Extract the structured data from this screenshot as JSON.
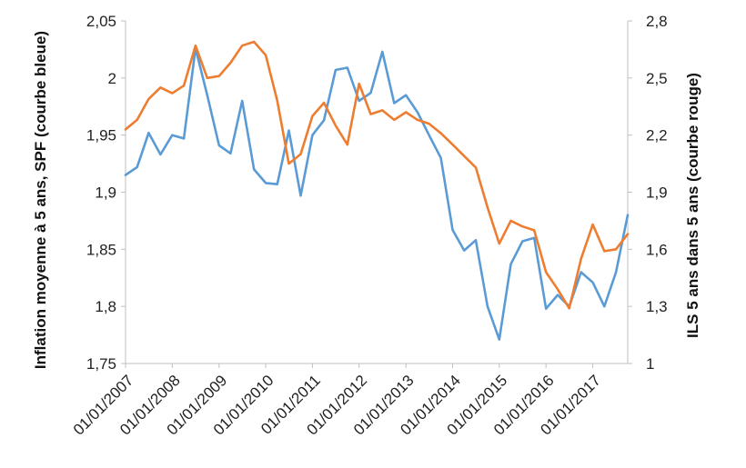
{
  "chart_data": {
    "type": "line",
    "title": "",
    "xlabel": "",
    "ylabel_left": "Inflation moyenne à 5 ans, SPF (courbe bleue)",
    "ylabel_right": "ILS 5 ans dans 5 ans (courbe rouge)",
    "ylim_left": [
      1.75,
      2.05
    ],
    "ylim_right": [
      1.0,
      2.8
    ],
    "ytick_labels_left": [
      "1,75",
      "1,8",
      "1,85",
      "1,9",
      "1,95",
      "2",
      "2,05"
    ],
    "ytick_labels_right": [
      "1",
      "1,3",
      "1,6",
      "1,9",
      "2,2",
      "2,5",
      "2,8"
    ],
    "x_tick_labels": [
      "01/01/2007",
      "01/01/2008",
      "01/01/2009",
      "01/01/2010",
      "01/01/2011",
      "01/01/2012",
      "01/01/2013",
      "01/01/2014",
      "01/01/2015",
      "01/01/2016",
      "01/01/2017"
    ],
    "x_start": "2007-01-01",
    "x_end": "2017-10-01",
    "grid": false,
    "legend": "none",
    "series": [
      {
        "axis": "left",
        "color": "#5b9bd5",
        "x": [
          "2007-01-01",
          "2007-04-01",
          "2007-07-01",
          "2007-10-01",
          "2008-01-01",
          "2008-04-01",
          "2008-07-01",
          "2008-10-01",
          "2009-01-01",
          "2009-04-01",
          "2009-07-01",
          "2009-10-01",
          "2010-01-01",
          "2010-04-01",
          "2010-07-01",
          "2010-10-01",
          "2011-01-01",
          "2011-04-01",
          "2011-07-01",
          "2011-10-01",
          "2012-01-01",
          "2012-04-01",
          "2012-07-01",
          "2012-10-01",
          "2013-01-01",
          "2013-04-01",
          "2013-07-01",
          "2013-10-01",
          "2014-01-01",
          "2014-04-01",
          "2014-07-01",
          "2014-10-01",
          "2015-01-01",
          "2015-04-01",
          "2015-07-01",
          "2015-10-01",
          "2016-01-01",
          "2016-04-01",
          "2016-07-01",
          "2016-10-01",
          "2017-01-01",
          "2017-04-01",
          "2017-07-01",
          "2017-10-01"
        ],
        "values": [
          1.915,
          1.922,
          1.952,
          1.933,
          1.95,
          1.947,
          2.026,
          1.985,
          1.941,
          1.934,
          1.98,
          1.92,
          1.908,
          1.907,
          1.954,
          1.897,
          1.95,
          1.963,
          2.007,
          2.009,
          1.98,
          1.987,
          2.023,
          1.978,
          1.985,
          1.97,
          1.95,
          1.93,
          1.867,
          1.849,
          1.858,
          1.8,
          1.771,
          1.837,
          1.857,
          1.86,
          1.798,
          1.81,
          1.8,
          1.83,
          1.821,
          1.8,
          1.83,
          1.88
        ]
      },
      {
        "axis": "right",
        "color": "#ed7d31",
        "x": [
          "2007-01-01",
          "2007-04-01",
          "2007-07-01",
          "2007-10-01",
          "2008-01-01",
          "2008-04-01",
          "2008-07-01",
          "2008-10-01",
          "2009-01-01",
          "2009-04-01",
          "2009-07-01",
          "2009-10-01",
          "2010-01-01",
          "2010-04-01",
          "2010-07-01",
          "2010-10-01",
          "2011-01-01",
          "2011-04-01",
          "2011-07-01",
          "2011-10-01",
          "2012-01-01",
          "2012-04-01",
          "2012-07-01",
          "2012-10-01",
          "2013-01-01",
          "2013-04-01",
          "2013-07-01",
          "2013-10-01",
          "2014-01-01",
          "2014-04-01",
          "2014-07-01",
          "2014-10-01",
          "2015-01-01",
          "2015-04-01",
          "2015-07-01",
          "2015-10-01",
          "2016-01-01",
          "2016-04-01",
          "2016-07-01",
          "2016-10-01",
          "2017-01-01",
          "2017-04-01",
          "2017-07-01",
          "2017-10-01"
        ],
        "values": [
          2.23,
          2.28,
          2.39,
          2.45,
          2.42,
          2.46,
          2.67,
          2.5,
          2.51,
          2.58,
          2.67,
          2.69,
          2.62,
          2.38,
          2.05,
          2.1,
          2.3,
          2.37,
          2.25,
          2.15,
          2.47,
          2.31,
          2.33,
          2.28,
          2.32,
          2.28,
          2.26,
          2.21,
          2.15,
          2.09,
          2.03,
          1.82,
          1.63,
          1.75,
          1.72,
          1.7,
          1.48,
          1.39,
          1.29,
          1.55,
          1.73,
          1.59,
          1.6,
          1.68
        ]
      }
    ]
  }
}
